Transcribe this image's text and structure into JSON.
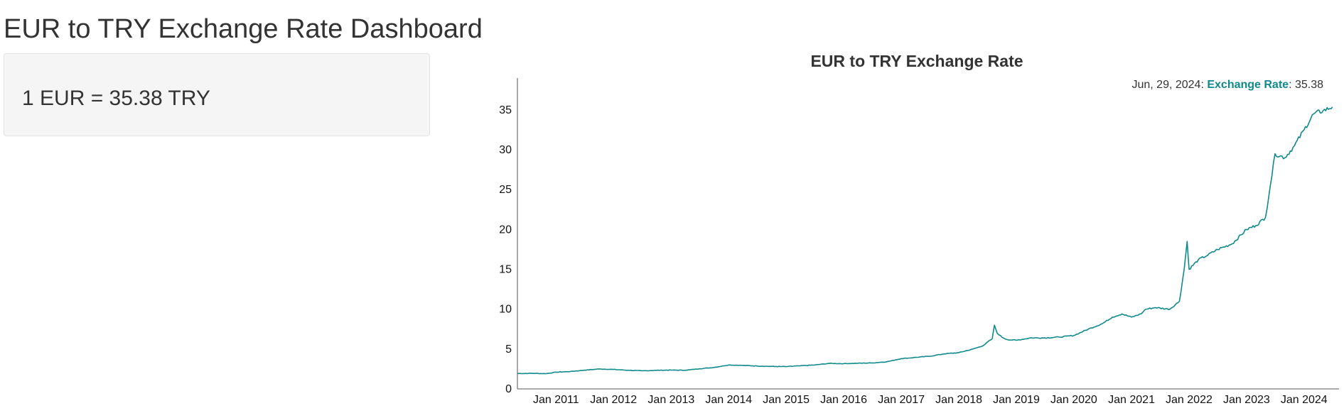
{
  "page": {
    "title": "EUR to TRY Exchange Rate Dashboard"
  },
  "rate_panel": {
    "text": "1 EUR = 35.38 TRY"
  },
  "colors": {
    "series": "#0f8a8a",
    "panel_bg": "#f5f5f5",
    "text": "#333333"
  },
  "hover": {
    "date": "Jun, 29, 2024",
    "series_name": "Exchange Rate",
    "value": "35.38"
  },
  "chart_data": {
    "type": "line",
    "title": "EUR to TRY Exchange Rate",
    "xlabel": "",
    "ylabel": "",
    "ylim": [
      0,
      39
    ],
    "xlim": [
      "2010-05-01",
      "2024-07-05"
    ],
    "grid": false,
    "legend": "none",
    "x_ticks": [
      "Jan 2011",
      "Jan 2012",
      "Jan 2013",
      "Jan 2014",
      "Jan 2015",
      "Jan 2016",
      "Jan 2017",
      "Jan 2018",
      "Jan 2019",
      "Jan 2020",
      "Jan 2021",
      "Jan 2022",
      "Jan 2023",
      "Jan 2024"
    ],
    "y_ticks": [
      0,
      5,
      10,
      15,
      20,
      25,
      30,
      35
    ],
    "series": [
      {
        "name": "Exchange Rate",
        "x": [
          "2010-05-01",
          "2010-08-01",
          "2010-11-01",
          "2011-01-01",
          "2011-04-01",
          "2011-07-01",
          "2011-10-01",
          "2012-01-01",
          "2012-04-01",
          "2012-07-01",
          "2012-10-01",
          "2013-01-01",
          "2013-04-01",
          "2013-07-01",
          "2013-10-01",
          "2014-01-01",
          "2014-04-01",
          "2014-07-01",
          "2014-10-01",
          "2015-01-01",
          "2015-04-01",
          "2015-07-01",
          "2015-10-01",
          "2016-01-01",
          "2016-04-01",
          "2016-07-01",
          "2016-10-01",
          "2017-01-01",
          "2017-04-01",
          "2017-07-01",
          "2017-10-01",
          "2018-01-01",
          "2018-04-01",
          "2018-06-01",
          "2018-08-01",
          "2018-08-15",
          "2018-09-01",
          "2018-10-01",
          "2018-11-01",
          "2019-01-01",
          "2019-04-01",
          "2019-07-01",
          "2019-10-01",
          "2020-01-01",
          "2020-04-01",
          "2020-07-01",
          "2020-09-01",
          "2020-11-01",
          "2021-01-01",
          "2021-03-01",
          "2021-04-01",
          "2021-06-01",
          "2021-09-01",
          "2021-11-01",
          "2021-12-01",
          "2021-12-20",
          "2022-01-01",
          "2022-03-01",
          "2022-05-01",
          "2022-07-01",
          "2022-10-01",
          "2023-01-01",
          "2023-03-01",
          "2023-05-01",
          "2023-06-01",
          "2023-07-01",
          "2023-09-01",
          "2023-11-01",
          "2024-01-01",
          "2024-03-01",
          "2024-05-01",
          "2024-06-29"
        ],
        "values": [
          1.93,
          1.95,
          1.92,
          2.1,
          2.18,
          2.35,
          2.5,
          2.44,
          2.34,
          2.27,
          2.33,
          2.36,
          2.34,
          2.53,
          2.7,
          3.0,
          2.95,
          2.87,
          2.82,
          2.8,
          2.9,
          3.0,
          3.2,
          3.17,
          3.22,
          3.26,
          3.41,
          3.8,
          3.95,
          4.1,
          4.4,
          4.55,
          5.0,
          5.4,
          6.3,
          8.0,
          7.0,
          6.5,
          6.2,
          6.1,
          6.4,
          6.4,
          6.5,
          6.7,
          7.5,
          8.2,
          9.0,
          9.4,
          9.0,
          9.4,
          10.0,
          10.2,
          10.0,
          11.0,
          15.0,
          18.5,
          15.0,
          16.2,
          16.8,
          17.5,
          18.2,
          20.0,
          20.5,
          21.5,
          25.5,
          29.5,
          29.0,
          30.5,
          32.5,
          34.5,
          34.9,
          35.38
        ]
      }
    ]
  }
}
